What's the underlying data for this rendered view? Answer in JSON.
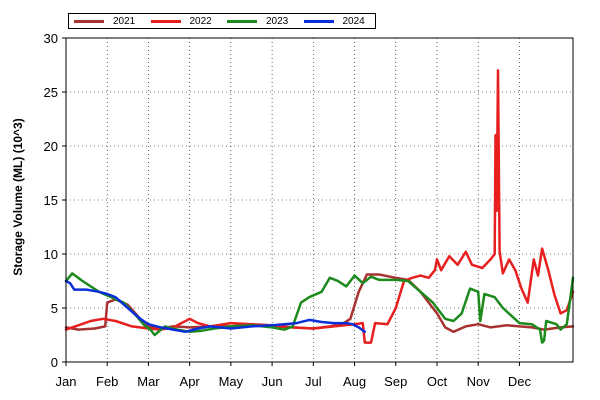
{
  "chart_data": {
    "type": "line",
    "title": "",
    "xlabel": "",
    "ylabel": "Storage Volume (ML) (10^3)",
    "x_tick_labels": [
      "Jan",
      "Feb",
      "Mar",
      "Apr",
      "May",
      "Jun",
      "Jul",
      "Aug",
      "Sep",
      "Oct",
      "Nov",
      "Dec"
    ],
    "y_tick_labels": [
      "0",
      "5",
      "10",
      "15",
      "20",
      "25",
      "30"
    ],
    "xlim_months": [
      0,
      12.3
    ],
    "ylim": [
      0,
      30
    ],
    "grid": true,
    "legend_position": "top-left",
    "series": [
      {
        "name": "2021",
        "color": "#a83232",
        "points": [
          [
            0,
            3.2
          ],
          [
            0.3,
            3.0
          ],
          [
            0.7,
            3.1
          ],
          [
            0.95,
            3.3
          ],
          [
            1.0,
            5.5
          ],
          [
            1.2,
            5.8
          ],
          [
            1.5,
            5.3
          ],
          [
            1.8,
            4.0
          ],
          [
            2.0,
            3.3
          ],
          [
            2.3,
            3.1
          ],
          [
            2.6,
            3.3
          ],
          [
            3.0,
            3.2
          ],
          [
            3.5,
            3.3
          ],
          [
            4.0,
            3.3
          ],
          [
            4.5,
            3.5
          ],
          [
            5.0,
            3.4
          ],
          [
            5.5,
            3.2
          ],
          [
            6.0,
            3.1
          ],
          [
            6.4,
            3.3
          ],
          [
            6.7,
            3.5
          ],
          [
            6.9,
            4.0
          ],
          [
            7.1,
            6.5
          ],
          [
            7.3,
            8.1
          ],
          [
            7.6,
            8.1
          ],
          [
            8.0,
            7.8
          ],
          [
            8.3,
            7.6
          ],
          [
            8.6,
            6.5
          ],
          [
            8.8,
            5.5
          ],
          [
            9.0,
            4.5
          ],
          [
            9.2,
            3.2
          ],
          [
            9.4,
            2.8
          ],
          [
            9.7,
            3.3
          ],
          [
            10.0,
            3.5
          ],
          [
            10.3,
            3.2
          ],
          [
            10.7,
            3.4
          ],
          [
            11.0,
            3.3
          ],
          [
            11.3,
            3.2
          ],
          [
            11.6,
            3.0
          ],
          [
            12.0,
            3.2
          ],
          [
            12.3,
            3.3
          ]
        ]
      },
      {
        "name": "2022",
        "color": "#e81f1f",
        "points": [
          [
            0,
            3.0
          ],
          [
            0.3,
            3.4
          ],
          [
            0.6,
            3.8
          ],
          [
            0.9,
            4.0
          ],
          [
            1.2,
            3.8
          ],
          [
            1.6,
            3.3
          ],
          [
            2.0,
            3.1
          ],
          [
            2.3,
            3.0
          ],
          [
            2.6,
            3.2
          ],
          [
            3.0,
            4.0
          ],
          [
            3.2,
            3.6
          ],
          [
            3.5,
            3.3
          ],
          [
            4.0,
            3.6
          ],
          [
            4.5,
            3.5
          ],
          [
            5.0,
            3.3
          ],
          [
            5.5,
            3.2
          ],
          [
            6.0,
            3.1
          ],
          [
            6.5,
            3.3
          ],
          [
            7.0,
            3.5
          ],
          [
            7.2,
            3.6
          ],
          [
            7.25,
            1.8
          ],
          [
            7.4,
            1.8
          ],
          [
            7.5,
            3.6
          ],
          [
            7.8,
            3.5
          ],
          [
            8.0,
            5.0
          ],
          [
            8.2,
            7.5
          ],
          [
            8.4,
            7.8
          ],
          [
            8.6,
            8.0
          ],
          [
            8.8,
            7.8
          ],
          [
            8.95,
            8.5
          ],
          [
            9.0,
            9.5
          ],
          [
            9.1,
            8.5
          ],
          [
            9.3,
            9.8
          ],
          [
            9.5,
            9.0
          ],
          [
            9.7,
            10.2
          ],
          [
            9.85,
            9.0
          ],
          [
            10.1,
            8.7
          ],
          [
            10.3,
            9.5
          ],
          [
            10.4,
            10.0
          ],
          [
            10.42,
            21.0
          ],
          [
            10.45,
            14.0
          ],
          [
            10.48,
            27.0
          ],
          [
            10.52,
            10.2
          ],
          [
            10.6,
            8.2
          ],
          [
            10.75,
            9.5
          ],
          [
            10.9,
            8.5
          ],
          [
            11.05,
            6.8
          ],
          [
            11.2,
            5.5
          ],
          [
            11.35,
            9.5
          ],
          [
            11.45,
            8.0
          ],
          [
            11.55,
            10.5
          ],
          [
            11.7,
            8.5
          ],
          [
            11.85,
            6.2
          ],
          [
            12.0,
            4.5
          ],
          [
            12.15,
            4.8
          ],
          [
            12.3,
            6.5
          ]
        ]
      },
      {
        "name": "2023",
        "color": "#1c8a1c",
        "points": [
          [
            0,
            7.5
          ],
          [
            0.15,
            8.2
          ],
          [
            0.4,
            7.5
          ],
          [
            0.8,
            6.5
          ],
          [
            1.1,
            6.0
          ],
          [
            1.4,
            5.5
          ],
          [
            1.7,
            4.3
          ],
          [
            1.9,
            3.4
          ],
          [
            2.05,
            3.0
          ],
          [
            2.15,
            2.5
          ],
          [
            2.4,
            3.3
          ],
          [
            2.7,
            3.0
          ],
          [
            3.0,
            2.8
          ],
          [
            3.3,
            2.9
          ],
          [
            3.6,
            3.1
          ],
          [
            4.0,
            3.3
          ],
          [
            4.5,
            3.4
          ],
          [
            5.0,
            3.2
          ],
          [
            5.3,
            3.0
          ],
          [
            5.5,
            3.3
          ],
          [
            5.7,
            5.5
          ],
          [
            5.9,
            6.0
          ],
          [
            6.2,
            6.5
          ],
          [
            6.4,
            7.8
          ],
          [
            6.6,
            7.5
          ],
          [
            6.8,
            7.0
          ],
          [
            7.0,
            8.0
          ],
          [
            7.2,
            7.3
          ],
          [
            7.4,
            7.9
          ],
          [
            7.6,
            7.6
          ],
          [
            8.0,
            7.6
          ],
          [
            8.3,
            7.5
          ],
          [
            8.6,
            6.5
          ],
          [
            8.9,
            5.5
          ],
          [
            9.2,
            4.0
          ],
          [
            9.4,
            3.8
          ],
          [
            9.6,
            4.5
          ],
          [
            9.8,
            6.8
          ],
          [
            10.0,
            6.5
          ],
          [
            10.05,
            3.8
          ],
          [
            10.15,
            6.3
          ],
          [
            10.4,
            6.0
          ],
          [
            10.6,
            5.0
          ],
          [
            11.0,
            3.6
          ],
          [
            11.3,
            3.5
          ],
          [
            11.5,
            3.0
          ],
          [
            11.55,
            1.8
          ],
          [
            11.6,
            2.0
          ],
          [
            11.65,
            3.8
          ],
          [
            11.9,
            3.5
          ],
          [
            12.0,
            3.0
          ],
          [
            12.15,
            3.5
          ],
          [
            12.3,
            7.8
          ]
        ]
      },
      {
        "name": "2024",
        "color": "#0a2ed8",
        "points": [
          [
            0,
            7.5
          ],
          [
            0.1,
            7.3
          ],
          [
            0.2,
            6.7
          ],
          [
            0.5,
            6.7
          ],
          [
            0.8,
            6.5
          ],
          [
            1.0,
            6.3
          ],
          [
            1.2,
            6.0
          ],
          [
            1.5,
            5.0
          ],
          [
            1.8,
            4.0
          ],
          [
            2.0,
            3.5
          ],
          [
            2.3,
            3.2
          ],
          [
            2.6,
            3.0
          ],
          [
            2.9,
            2.8
          ],
          [
            3.2,
            3.1
          ],
          [
            3.5,
            3.3
          ],
          [
            4.0,
            3.1
          ],
          [
            4.5,
            3.3
          ],
          [
            5.0,
            3.4
          ],
          [
            5.3,
            3.5
          ],
          [
            5.6,
            3.6
          ],
          [
            5.9,
            3.9
          ],
          [
            6.2,
            3.7
          ],
          [
            6.5,
            3.6
          ],
          [
            6.8,
            3.6
          ],
          [
            6.95,
            3.5
          ],
          [
            7.1,
            3.2
          ],
          [
            7.25,
            2.8
          ]
        ]
      }
    ]
  }
}
